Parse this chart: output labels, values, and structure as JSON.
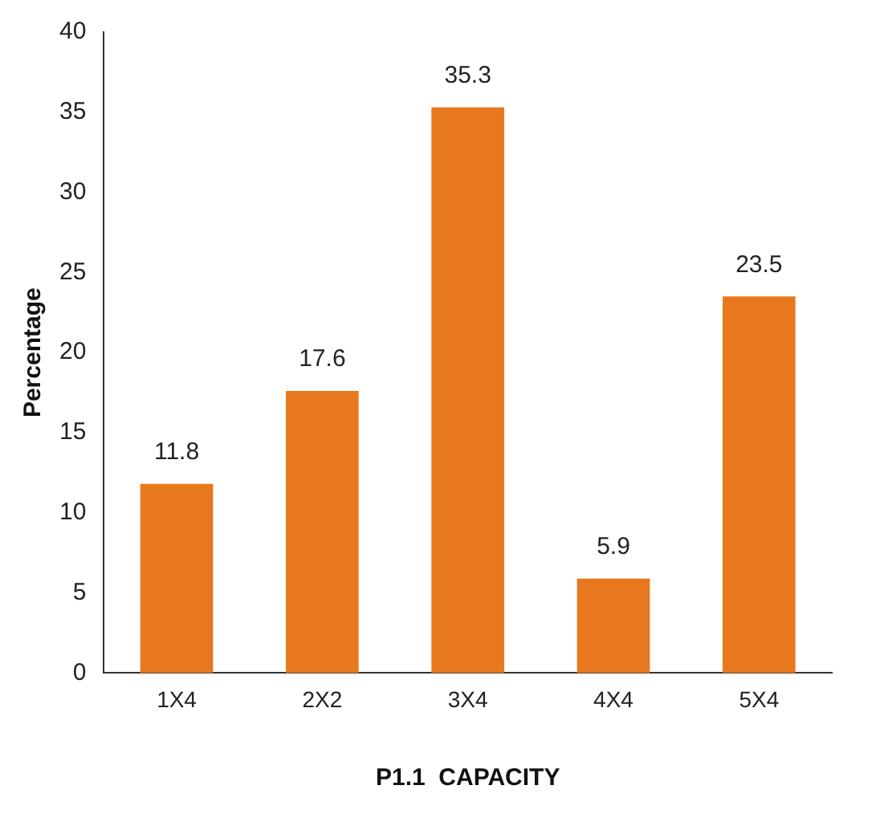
{
  "chart_data": {
    "type": "bar",
    "xlabel": "P1.1  CAPACITY",
    "ylabel": "Percentage",
    "categories": [
      "1X4",
      "2X2",
      "3X4",
      "4X4",
      "5X4"
    ],
    "values": [
      11.8,
      17.6,
      35.3,
      5.9,
      23.5
    ],
    "color": "#e8781e",
    "ylim": [
      0,
      40
    ],
    "yticks": [
      0,
      5,
      10,
      15,
      20,
      25,
      30,
      35,
      40
    ],
    "grid": false,
    "legend": false,
    "data_labels": true
  }
}
